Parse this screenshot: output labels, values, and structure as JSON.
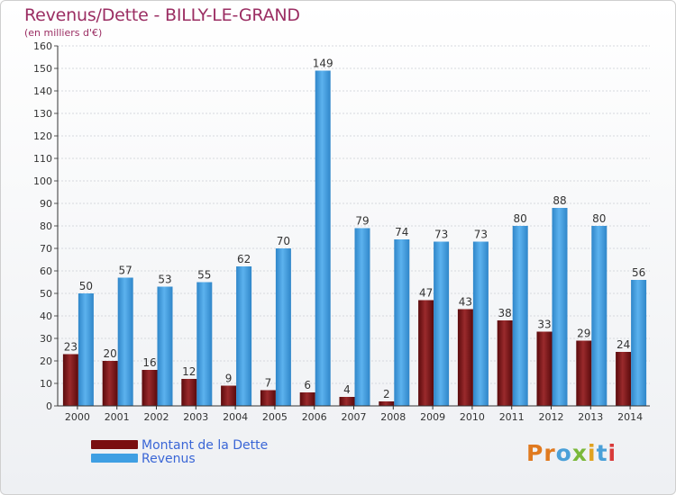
{
  "header": {
    "title": "Revenus/Dette - BILLY-LE-GRAND",
    "subtitle": "(en milliers d'€)"
  },
  "colors": {
    "dette": "#7a0e10",
    "revenus": "#3f9fe3",
    "title": "#9b2e63",
    "legend_text": "#3a66d6"
  },
  "legend": {
    "items": [
      {
        "label": "Montant de la Dette",
        "color": "#7a0e10"
      },
      {
        "label": "Revenus",
        "color": "#3f9fe3"
      }
    ]
  },
  "logo": {
    "text": "Proxiti",
    "icon": "proxiti-logo"
  },
  "chart_data": {
    "type": "bar",
    "title": "Revenus/Dette - BILLY-LE-GRAND",
    "subtitle": "(en milliers d'€)",
    "categories": [
      "2000",
      "2001",
      "2002",
      "2003",
      "2004",
      "2005",
      "2006",
      "2007",
      "2008",
      "2009",
      "2010",
      "2011",
      "2012",
      "2013",
      "2014"
    ],
    "series": [
      {
        "name": "Montant de la Dette",
        "color": "#7a0e10",
        "values": [
          23,
          20,
          16,
          12,
          9,
          7,
          6,
          4,
          2,
          47,
          43,
          38,
          33,
          29,
          24
        ]
      },
      {
        "name": "Revenus",
        "color": "#3f9fe3",
        "values": [
          50,
          57,
          53,
          55,
          62,
          70,
          149,
          79,
          74,
          73,
          73,
          80,
          88,
          80,
          56
        ]
      }
    ],
    "ylim": [
      0,
      160
    ],
    "yticks": [
      0,
      10,
      20,
      30,
      40,
      50,
      60,
      70,
      80,
      90,
      100,
      110,
      120,
      130,
      140,
      150,
      160
    ],
    "grid": true,
    "data_labels": true,
    "legend_position": "bottom-left"
  }
}
